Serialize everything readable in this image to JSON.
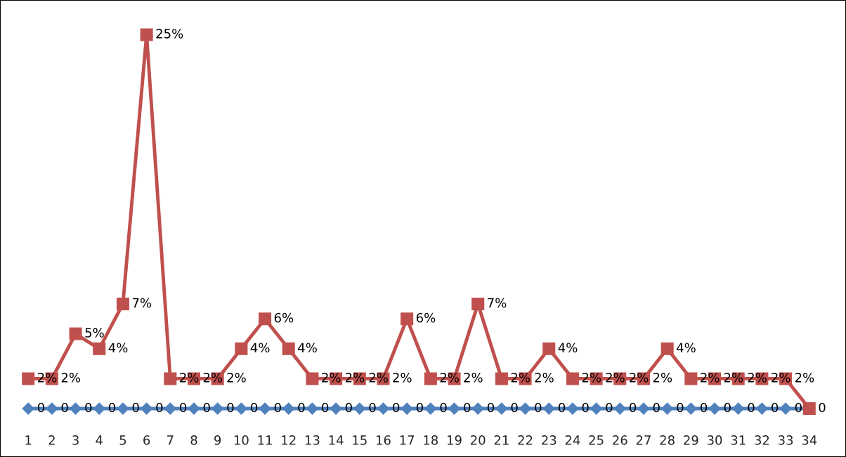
{
  "chart_data": {
    "type": "line",
    "categories": [
      "1",
      "2",
      "3",
      "4",
      "5",
      "6",
      "7",
      "8",
      "9",
      "10",
      "11",
      "12",
      "13",
      "14",
      "15",
      "16",
      "17",
      "18",
      "19",
      "20",
      "21",
      "22",
      "23",
      "24",
      "25",
      "26",
      "27",
      "28",
      "29",
      "30",
      "31",
      "32",
      "33",
      "34"
    ],
    "series": [
      {
        "color": "#4f81bd",
        "marker": "diamond",
        "values": [
          0,
          0,
          0,
          0,
          0,
          0,
          0,
          0,
          0,
          0,
          0,
          0,
          0,
          0,
          0,
          0,
          0,
          0,
          0,
          0,
          0,
          0,
          0,
          0,
          0,
          0,
          0,
          0,
          0,
          0,
          0,
          0,
          0,
          0
        ],
        "value_labels": [
          "0",
          "0",
          "0",
          "0",
          "0",
          "0",
          "0",
          "0",
          "0",
          "0",
          "0",
          "0",
          "0",
          "0",
          "0",
          "0",
          "0",
          "0",
          "0",
          "0",
          "0",
          "0",
          "0",
          "0",
          "0",
          "0",
          "0",
          "0",
          "0",
          "0",
          "0",
          "0",
          "0",
          "0"
        ]
      },
      {
        "color": "#c0504d",
        "marker": "square",
        "values": [
          2,
          2,
          5,
          4,
          7,
          25,
          2,
          2,
          2,
          4,
          6,
          4,
          2,
          2,
          2,
          2,
          6,
          2,
          2,
          7,
          2,
          2,
          4,
          2,
          2,
          2,
          2,
          4,
          2,
          2,
          2,
          2,
          2,
          0
        ],
        "value_labels": [
          "2%",
          "2%",
          "5%",
          "4%",
          "7%",
          "25%",
          "2%",
          "2%",
          "2%",
          "4%",
          "6%",
          "4%",
          "2%",
          "2%",
          "2%",
          "2%",
          "6%",
          "2%",
          "2%",
          "7%",
          "2%",
          "2%",
          "4%",
          "2%",
          "2%",
          "2%",
          "2%",
          "4%",
          "2%",
          "2%",
          "2%",
          "2%",
          "2%",
          null
        ]
      }
    ],
    "tick_labels": "x",
    "grid": false,
    "legend": false,
    "line_style": "solid"
  }
}
